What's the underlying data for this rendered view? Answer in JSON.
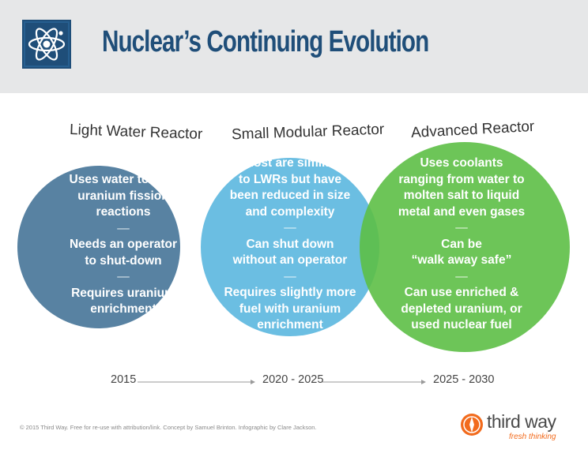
{
  "header": {
    "title": "Nuclear’s Continuing Evolution",
    "icon": "atom-icon",
    "colors": {
      "badge": "#1f4e79",
      "title": "#1f4e79",
      "band": "#e6e7e8"
    }
  },
  "reactors": [
    {
      "label": "Light Water Reactor",
      "color": "#4f7b9d",
      "facts": [
        [
          "Uses water to cool",
          "uranium fission",
          "reactions"
        ],
        [
          "Needs an operator",
          "to shut-down"
        ],
        [
          "Requires uranium",
          "enrichment"
        ]
      ]
    },
    {
      "label": "Small Modular Reactor",
      "color": "#4ab0dc",
      "facts": [
        [
          "Most are similar",
          "to LWRs but have",
          "been reduced in size",
          "and complexity"
        ],
        [
          "Can shut down",
          "without an operator"
        ],
        [
          "Requires slightly more",
          "fuel with uranium",
          "enrichment"
        ]
      ]
    },
    {
      "label": "Advanced Reactor",
      "color": "#5dbf46",
      "facts": [
        [
          "Uses coolants",
          "ranging from water to",
          "molten salt to liquid",
          "metal and even gases"
        ],
        [
          "Can be",
          "“walk away safe”"
        ],
        [
          "Can use enriched &",
          "depleted uranium, or",
          "used nuclear fuel"
        ]
      ]
    }
  ],
  "separator": "—",
  "timeline": [
    "2015",
    "2020 - 2025",
    "2025 - 2030"
  ],
  "footer": {
    "credit": "© 2015 Third Way. Free for re-use with attribution/link. Concept by Samuel Brinton. Infographic by Clare Jackson.",
    "brand_name": "third way",
    "brand_tagline": "fresh thinking",
    "brand_icon": "compass-icon",
    "brand_color": "#f26b1d"
  }
}
